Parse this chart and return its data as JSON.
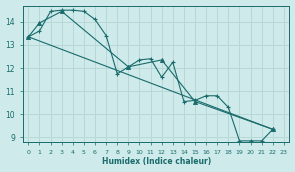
{
  "xlabel": "Humidex (Indice chaleur)",
  "background_color": "#ceeaea",
  "line_color": "#1a6b6b",
  "grid_color": "#b8d8d8",
  "xlim": [
    -0.5,
    23.5
  ],
  "ylim": [
    8.8,
    14.7
  ],
  "yticks": [
    9,
    10,
    11,
    12,
    13,
    14
  ],
  "series1_x": [
    0,
    1,
    2,
    3,
    4,
    5,
    6,
    7,
    8,
    9,
    10,
    11,
    12,
    13,
    14,
    15,
    16,
    17,
    18,
    19,
    20,
    21,
    22
  ],
  "series1_y": [
    13.35,
    13.6,
    14.45,
    14.5,
    14.5,
    14.45,
    14.1,
    13.4,
    11.75,
    12.05,
    12.35,
    12.4,
    11.6,
    12.25,
    10.55,
    10.6,
    10.8,
    10.8,
    10.3,
    8.85,
    8.85,
    8.85,
    9.35
  ],
  "series2_x": [
    0,
    1,
    3,
    9,
    12,
    15,
    22
  ],
  "series2_y": [
    13.35,
    13.95,
    14.45,
    12.05,
    12.35,
    10.55,
    9.35
  ],
  "series3_x": [
    0,
    22
  ],
  "series3_y": [
    13.35,
    9.35
  ],
  "xtick_count": 24
}
